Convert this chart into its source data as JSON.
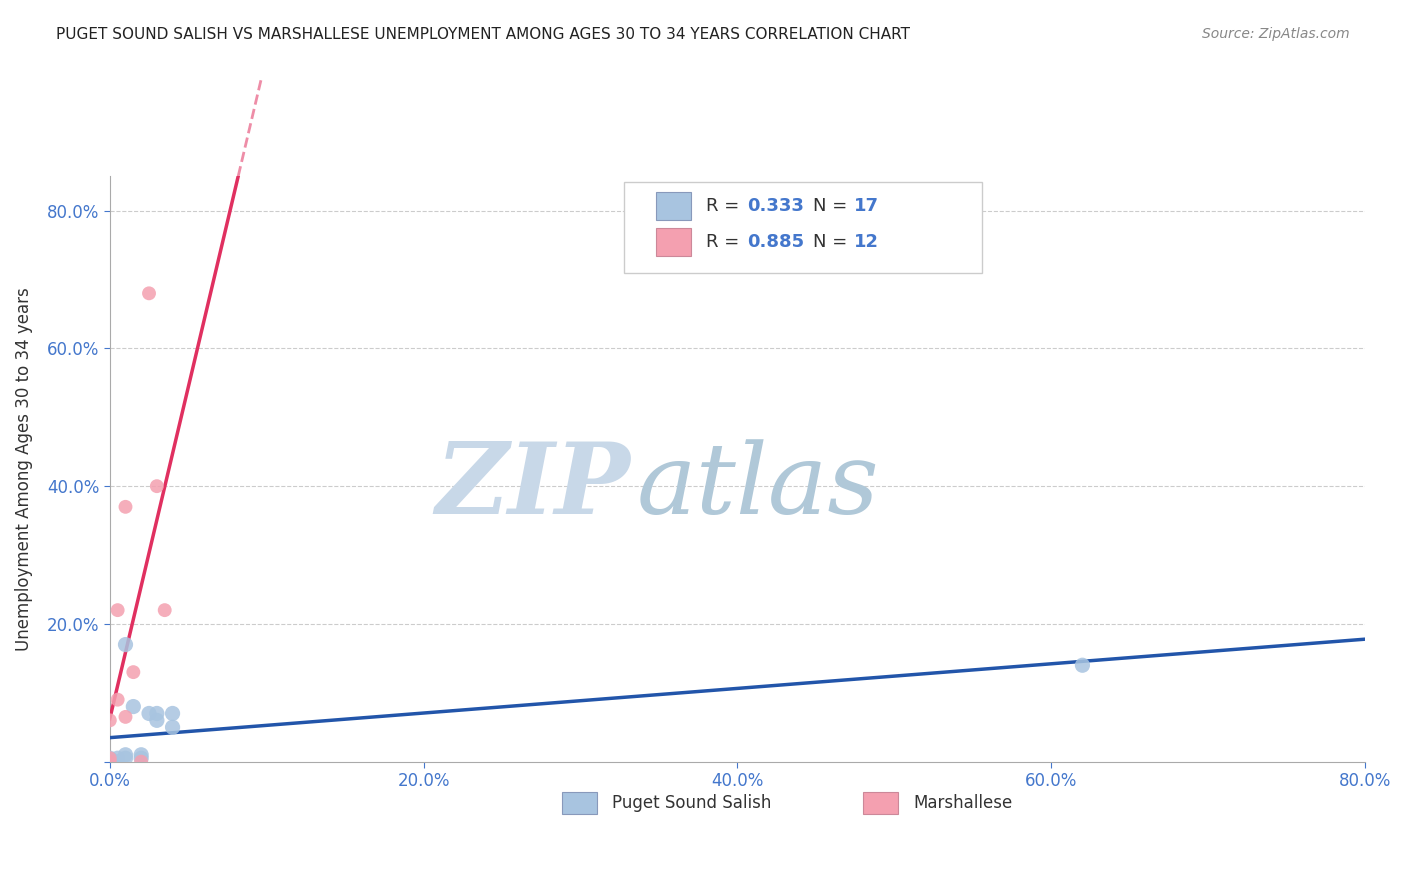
{
  "title": "PUGET SOUND SALISH VS MARSHALLESE UNEMPLOYMENT AMONG AGES 30 TO 34 YEARS CORRELATION CHART",
  "source": "Source: ZipAtlas.com",
  "ylabel": "Unemployment Among Ages 30 to 34 years",
  "xlim": [
    0.0,
    0.8
  ],
  "ylim": [
    0.0,
    0.85
  ],
  "xticks": [
    0.0,
    0.2,
    0.4,
    0.6,
    0.8
  ],
  "yticks": [
    0.0,
    0.2,
    0.4,
    0.6,
    0.8
  ],
  "xticklabels": [
    "0.0%",
    "20.0%",
    "40.0%",
    "60.0%",
    "80.0%"
  ],
  "yticklabels": [
    "",
    "20.0%",
    "40.0%",
    "60.0%",
    "80.0%"
  ],
  "salish_color": "#a8c4e0",
  "marshallese_color": "#f4a0b0",
  "salish_line_color": "#2255aa",
  "marshallese_line_color": "#e03060",
  "watermark_zip": "ZIP",
  "watermark_atlas": "atlas",
  "watermark_color_zip": "#c8d8e8",
  "watermark_color_atlas": "#b0c8d8",
  "title_color": "#222222",
  "axis_color": "#4477cc",
  "salish_x": [
    0.0,
    0.0,
    0.0,
    0.005,
    0.005,
    0.01,
    0.01,
    0.01,
    0.015,
    0.02,
    0.02,
    0.025,
    0.03,
    0.03,
    0.04,
    0.04,
    0.62
  ],
  "salish_y": [
    0.0,
    0.0,
    0.005,
    0.0,
    0.005,
    0.17,
    0.005,
    0.01,
    0.08,
    0.005,
    0.01,
    0.07,
    0.06,
    0.07,
    0.05,
    0.07,
    0.14
  ],
  "marshallese_x": [
    0.0,
    0.0,
    0.0,
    0.005,
    0.005,
    0.01,
    0.01,
    0.015,
    0.02,
    0.025,
    0.03,
    0.035
  ],
  "marshallese_y": [
    0.0,
    0.005,
    0.06,
    0.09,
    0.22,
    0.37,
    0.065,
    0.13,
    0.0,
    0.68,
    0.4,
    0.22
  ],
  "salish_marker_size": 120,
  "marshallese_marker_size": 100,
  "background_color": "#ffffff",
  "grid_color": "#cccccc",
  "figsize": [
    14.06,
    8.92
  ],
  "dpi": 100
}
